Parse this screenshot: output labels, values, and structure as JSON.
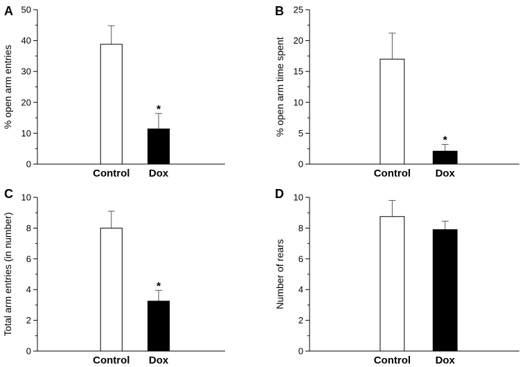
{
  "chart_data": [
    {
      "type": "bar",
      "panel_letter": "A",
      "categories": [
        "Control",
        "Dox"
      ],
      "values": [
        38.8,
        11.4
      ],
      "errors": [
        6.0,
        5.0
      ],
      "significance": [
        "",
        "*"
      ],
      "bar_colors": [
        "#ffffff",
        "#000000"
      ],
      "ylabel": "% open arm entries",
      "xlabel": "",
      "ylim": [
        0,
        50
      ],
      "major_ticks": [
        0,
        10,
        20,
        30,
        40,
        50
      ],
      "tick_labels": [
        "0",
        "10",
        "20",
        "30",
        "40",
        "50"
      ],
      "minor_step": 5
    },
    {
      "type": "bar",
      "panel_letter": "B",
      "categories": [
        "Control",
        "Dox"
      ],
      "values": [
        17.0,
        2.1
      ],
      "errors": [
        4.2,
        1.1
      ],
      "significance": [
        "",
        "*"
      ],
      "bar_colors": [
        "#ffffff",
        "#000000"
      ],
      "ylabel": "% open arm time spent",
      "xlabel": "",
      "ylim": [
        0,
        25
      ],
      "major_ticks": [
        0,
        5,
        10,
        15,
        20,
        25
      ],
      "tick_labels": [
        "0",
        "5",
        "10",
        "15",
        "20",
        "25"
      ],
      "minor_step": 2.5
    },
    {
      "type": "bar",
      "panel_letter": "C",
      "categories": [
        "Control",
        "Dox"
      ],
      "values": [
        8.0,
        3.25
      ],
      "errors": [
        1.1,
        0.7
      ],
      "significance": [
        "",
        "*"
      ],
      "bar_colors": [
        "#ffffff",
        "#000000"
      ],
      "ylabel": "Total arm entries (in number)",
      "xlabel": "",
      "ylim": [
        0,
        10
      ],
      "major_ticks": [
        0,
        2,
        4,
        6,
        8,
        10
      ],
      "tick_labels": [
        "0",
        "2",
        "4",
        "6",
        "8",
        "10"
      ],
      "minor_step": 1
    },
    {
      "type": "bar",
      "panel_letter": "D",
      "categories": [
        "Control",
        "Dox"
      ],
      "values": [
        8.75,
        7.9
      ],
      "errors": [
        1.05,
        0.55
      ],
      "significance": [
        "",
        ""
      ],
      "bar_colors": [
        "#ffffff",
        "#000000"
      ],
      "ylabel": "Number of rears",
      "xlabel": "",
      "ylim": [
        0,
        10
      ],
      "major_ticks": [
        0,
        2,
        4,
        6,
        8,
        10
      ],
      "tick_labels": [
        "0",
        "2",
        "4",
        "6",
        "8",
        "10"
      ],
      "minor_step": 1
    }
  ]
}
